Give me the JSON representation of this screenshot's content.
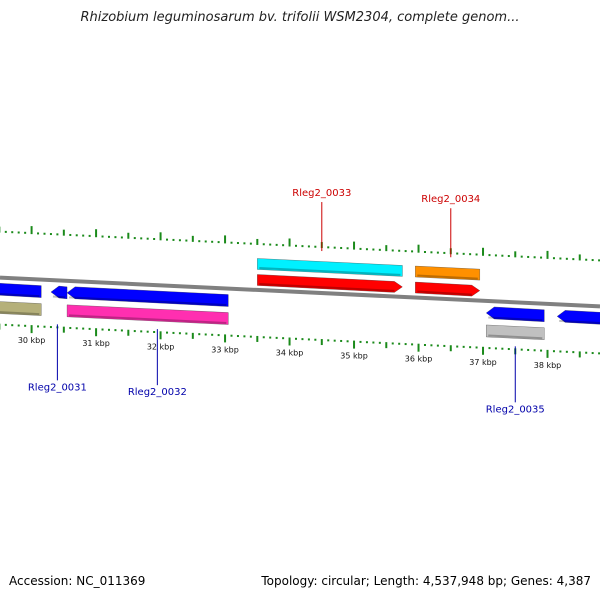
{
  "title": "Rhizobium leguminosarum bv. trifolii WSM2304, complete genom...",
  "footer": {
    "accession": "Accession: NC_011369",
    "summary": "Topology: circular; Length: 4,537,948 bp; Genes: 4,387"
  },
  "colors": {
    "backbone": "#808080",
    "tick_green": "#1a8a1a",
    "label_red": "#cc0000",
    "label_blue": "#0000aa",
    "blue": "#0000ff",
    "olive": "#b5b07a",
    "magenta": "#ff2fb0",
    "cyan": "#00f0ff",
    "red": "#ff0000",
    "orange": "#ff9000",
    "gray": "#c0c0c0"
  },
  "axis": {
    "unit": "kbp",
    "ticks": [
      {
        "pos": 30,
        "label": "30 kbp"
      },
      {
        "pos": 31,
        "label": "31 kbp"
      },
      {
        "pos": 32,
        "label": "32 kbp"
      },
      {
        "pos": 33,
        "label": "33 kbp"
      },
      {
        "pos": 34,
        "label": "34 kbp"
      },
      {
        "pos": 35,
        "label": "35 kbp"
      },
      {
        "pos": 36,
        "label": "36 kbp"
      },
      {
        "pos": 37,
        "label": "37 kbp"
      },
      {
        "pos": 38,
        "label": "38 kbp"
      }
    ],
    "view_start_kbp": 29.2,
    "view_end_kbp": 39.0
  },
  "features": [
    {
      "name": "",
      "track": "rev",
      "start": 29.2,
      "end": 30.15,
      "color": "blue",
      "arrow": "left"
    },
    {
      "name": "",
      "track": "rev",
      "start": 30.3,
      "end": 30.55,
      "color": "blue",
      "arrow": "left"
    },
    {
      "name": "",
      "track": "rev",
      "start": 30.55,
      "end": 33.05,
      "color": "blue",
      "arrow": "left"
    },
    {
      "name": "",
      "track": "rev2",
      "start": 29.2,
      "end": 30.15,
      "color": "olive",
      "arrow": "none"
    },
    {
      "name": "",
      "track": "rev2",
      "start": 30.55,
      "end": 33.05,
      "color": "magenta",
      "arrow": "none"
    },
    {
      "name": "",
      "track": "fwd2",
      "start": 33.5,
      "end": 35.75,
      "color": "cyan",
      "arrow": "none"
    },
    {
      "name": "",
      "track": "fwd",
      "start": 33.5,
      "end": 35.75,
      "color": "red",
      "arrow": "right"
    },
    {
      "name": "",
      "track": "fwd2",
      "start": 35.95,
      "end": 36.95,
      "color": "orange",
      "arrow": "none"
    },
    {
      "name": "",
      "track": "fwd",
      "start": 35.95,
      "end": 36.95,
      "color": "red",
      "arrow": "right"
    },
    {
      "name": "",
      "track": "rev",
      "start": 37.05,
      "end": 37.95,
      "color": "blue",
      "arrow": "left"
    },
    {
      "name": "",
      "track": "rev2",
      "start": 37.05,
      "end": 37.95,
      "color": "gray",
      "arrow": "none"
    },
    {
      "name": "",
      "track": "rev",
      "start": 38.15,
      "end": 39.0,
      "color": "blue",
      "arrow": "left"
    }
  ],
  "gene_labels": [
    {
      "text": "Rleg2_0033",
      "side": "top",
      "color": "label_red",
      "anchor_kbp": 34.5
    },
    {
      "text": "Rleg2_0034",
      "side": "top",
      "color": "label_red",
      "anchor_kbp": 36.5
    },
    {
      "text": "Rleg2_0031",
      "side": "bottom",
      "color": "label_blue",
      "anchor_kbp": 30.4
    },
    {
      "text": "Rleg2_0032",
      "side": "bottom",
      "color": "label_blue",
      "anchor_kbp": 31.95
    },
    {
      "text": "Rleg2_0035",
      "side": "bottom",
      "color": "label_blue",
      "anchor_kbp": 37.5
    }
  ]
}
